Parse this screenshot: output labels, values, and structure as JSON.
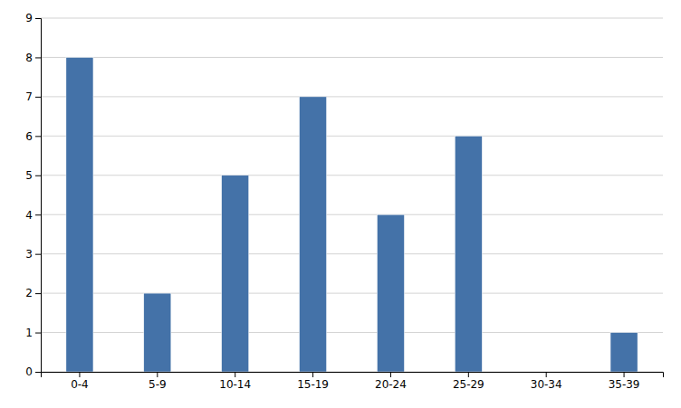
{
  "chart_data": {
    "type": "bar",
    "categories": [
      "0-4",
      "5-9",
      "10-14",
      "15-19",
      "20-24",
      "25-29",
      "30-34",
      "35-39"
    ],
    "values": [
      8,
      2,
      5,
      7,
      4,
      6,
      0,
      1
    ],
    "color": "#4472a8",
    "ylim": [
      0,
      9
    ],
    "yticks": [
      0,
      1,
      2,
      3,
      4,
      5,
      6,
      7,
      8,
      9
    ],
    "grid": true
  }
}
